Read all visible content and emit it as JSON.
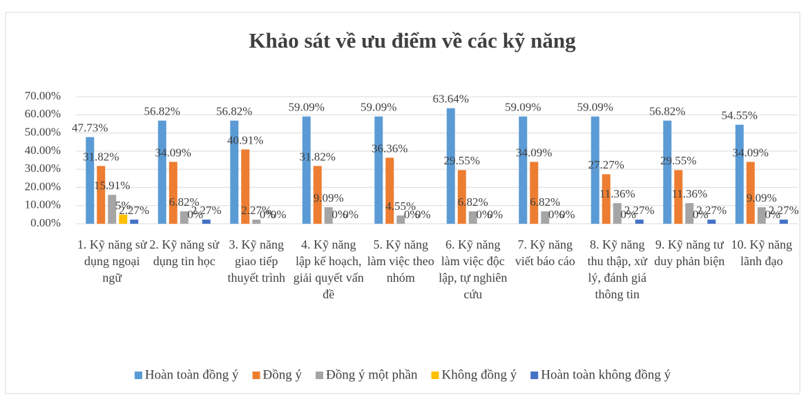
{
  "chart_data": {
    "type": "bar",
    "title": "Khảo sát về ưu điểm về các kỹ năng",
    "categories": [
      "1. Kỹ năng sử dụng ngoại ngữ",
      "2. Kỹ năng sử dụng tin học",
      "3. Kỹ năng giao tiếp thuyết trình",
      "4. Kỹ năng lập kế hoạch, giải quyết vấn đề",
      "5. Kỹ năng làm việc theo nhóm",
      "6. Kỹ năng làm việc độc lập, tự nghiên cứu",
      "7. Kỹ năng viết báo cáo",
      "8. Kỹ năng thu thập, xử lý, đánh giá thông tin",
      "9. Kỹ năng tư duy phản biện",
      "10. Kỹ năng lãnh đạo"
    ],
    "series": [
      {
        "name": "Hoàn toàn đồng ý",
        "color": "#5b9bd5",
        "values": [
          47.73,
          56.82,
          56.82,
          59.09,
          59.09,
          63.64,
          59.09,
          59.09,
          56.82,
          54.55
        ],
        "value_labels": [
          "47.73%",
          "56.82%",
          "56.82%",
          "59.09%",
          "59.09%",
          "63.64%",
          "59.09%",
          "59.09%",
          "56.82%",
          "54.55%"
        ]
      },
      {
        "name": "Đồng ý",
        "color": "#ed7d31",
        "values": [
          31.82,
          34.09,
          40.91,
          31.82,
          36.36,
          29.55,
          34.09,
          27.27,
          29.55,
          34.09
        ],
        "value_labels": [
          "31.82%",
          "34.09%",
          "40.91%",
          "31.82%",
          "36.36%",
          "29.55%",
          "34.09%",
          "27.27%",
          "29.55%",
          "34.09%"
        ]
      },
      {
        "name": "Đồng ý một phần",
        "color": "#a5a5a5",
        "values": [
          15.91,
          6.82,
          2.27,
          9.09,
          4.55,
          6.82,
          6.82,
          11.36,
          11.36,
          9.09
        ],
        "value_labels": [
          "15.91%",
          "6.82%",
          "2.27%",
          "9.09%",
          "4.55%",
          "6.82%",
          "6.82%",
          "11.36%",
          "11.36%",
          "9.09%"
        ]
      },
      {
        "name": "Không đồng ý",
        "color": "#ffc000",
        "values": [
          5,
          0,
          0,
          0,
          0,
          0,
          0,
          0,
          0,
          0
        ],
        "value_labels": [
          "5%",
          "0%",
          "0%",
          "0%",
          "0%",
          "0%",
          "0%",
          "0%",
          "0%",
          "0%"
        ]
      },
      {
        "name": "Hoàn toàn không đồng ý",
        "color": "#4472c4",
        "values": [
          2.27,
          2.27,
          0,
          0,
          0,
          0,
          0,
          2.27,
          2.27,
          2.27
        ],
        "value_labels": [
          "2.27%",
          "2.27%",
          "0%",
          "0%",
          "0%",
          "0%",
          "0%",
          "2.27%",
          "2.27%",
          "2.27%"
        ]
      }
    ],
    "ylim": [
      0,
      70
    ],
    "yticks": [
      {
        "value": 0,
        "label": "0.00%"
      },
      {
        "value": 10,
        "label": "10.00%"
      },
      {
        "value": 20,
        "label": "20.00%"
      },
      {
        "value": 30,
        "label": "30.00%"
      },
      {
        "value": 40,
        "label": "40.00%"
      },
      {
        "value": 50,
        "label": "50.00%"
      },
      {
        "value": 60,
        "label": "60.00%"
      },
      {
        "value": 70,
        "label": "70.00%"
      }
    ],
    "legend": "bottom"
  }
}
